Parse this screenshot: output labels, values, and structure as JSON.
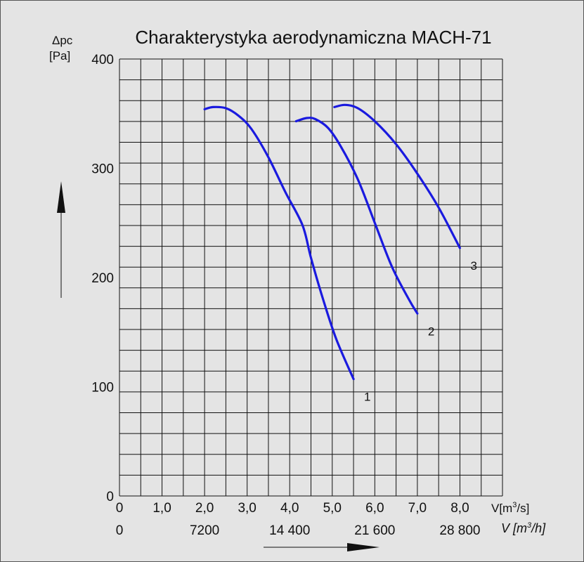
{
  "chart_data": {
    "type": "line",
    "title": "Charakterystyka aerodynamiczna MACH-71",
    "ylabel_symbol": "Δpc",
    "ylabel_unit": "[Pa]",
    "xlabel_flow": "V[m³/s]",
    "xlabel_flow_hourly": "V [m³/h]",
    "xlim": [
      0,
      9
    ],
    "ylim": [
      0,
      400
    ],
    "grid": true,
    "x_ticks": [
      {
        "value": 0,
        "label": "0"
      },
      {
        "value": 1,
        "label": "1,0"
      },
      {
        "value": 2,
        "label": "2,0"
      },
      {
        "value": 3,
        "label": "3,0"
      },
      {
        "value": 4,
        "label": "4,0"
      },
      {
        "value": 5,
        "label": "5,0"
      },
      {
        "value": 6,
        "label": "6,0"
      },
      {
        "value": 7,
        "label": "7,0"
      },
      {
        "value": 8,
        "label": "8,0"
      }
    ],
    "x_ticks_hourly": [
      {
        "value": 0,
        "label": "0"
      },
      {
        "value": 2,
        "label": "7200"
      },
      {
        "value": 4,
        "label": "14 400"
      },
      {
        "value": 6,
        "label": "21 600"
      },
      {
        "value": 8,
        "label": "28 800"
      }
    ],
    "y_ticks": [
      {
        "value": 0,
        "label": "0"
      },
      {
        "value": 100,
        "label": "100"
      },
      {
        "value": 200,
        "label": "200"
      },
      {
        "value": 300,
        "label": "300"
      },
      {
        "value": 400,
        "label": "400"
      }
    ],
    "series": [
      {
        "name": "1",
        "color": "#1a1adf",
        "x": [
          2.0,
          2.2,
          2.5,
          2.8,
          3.1,
          3.5,
          3.9,
          4.3,
          4.5,
          4.8,
          5.1,
          5.5
        ],
        "y": [
          354,
          356,
          355,
          348,
          336,
          310,
          278,
          248,
          218,
          178,
          143,
          107
        ]
      },
      {
        "name": "2",
        "color": "#1a1adf",
        "x": [
          4.15,
          4.4,
          4.6,
          4.9,
          5.2,
          5.6,
          6.0,
          6.4,
          6.8,
          7.0
        ],
        "y": [
          343,
          346,
          345,
          337,
          320,
          290,
          250,
          210,
          180,
          167
        ]
      },
      {
        "name": "3",
        "color": "#1a1adf",
        "x": [
          5.05,
          5.3,
          5.6,
          6.0,
          6.5,
          7.0,
          7.5,
          8.0
        ],
        "y": [
          356,
          358,
          355,
          343,
          322,
          295,
          264,
          227
        ]
      }
    ]
  }
}
